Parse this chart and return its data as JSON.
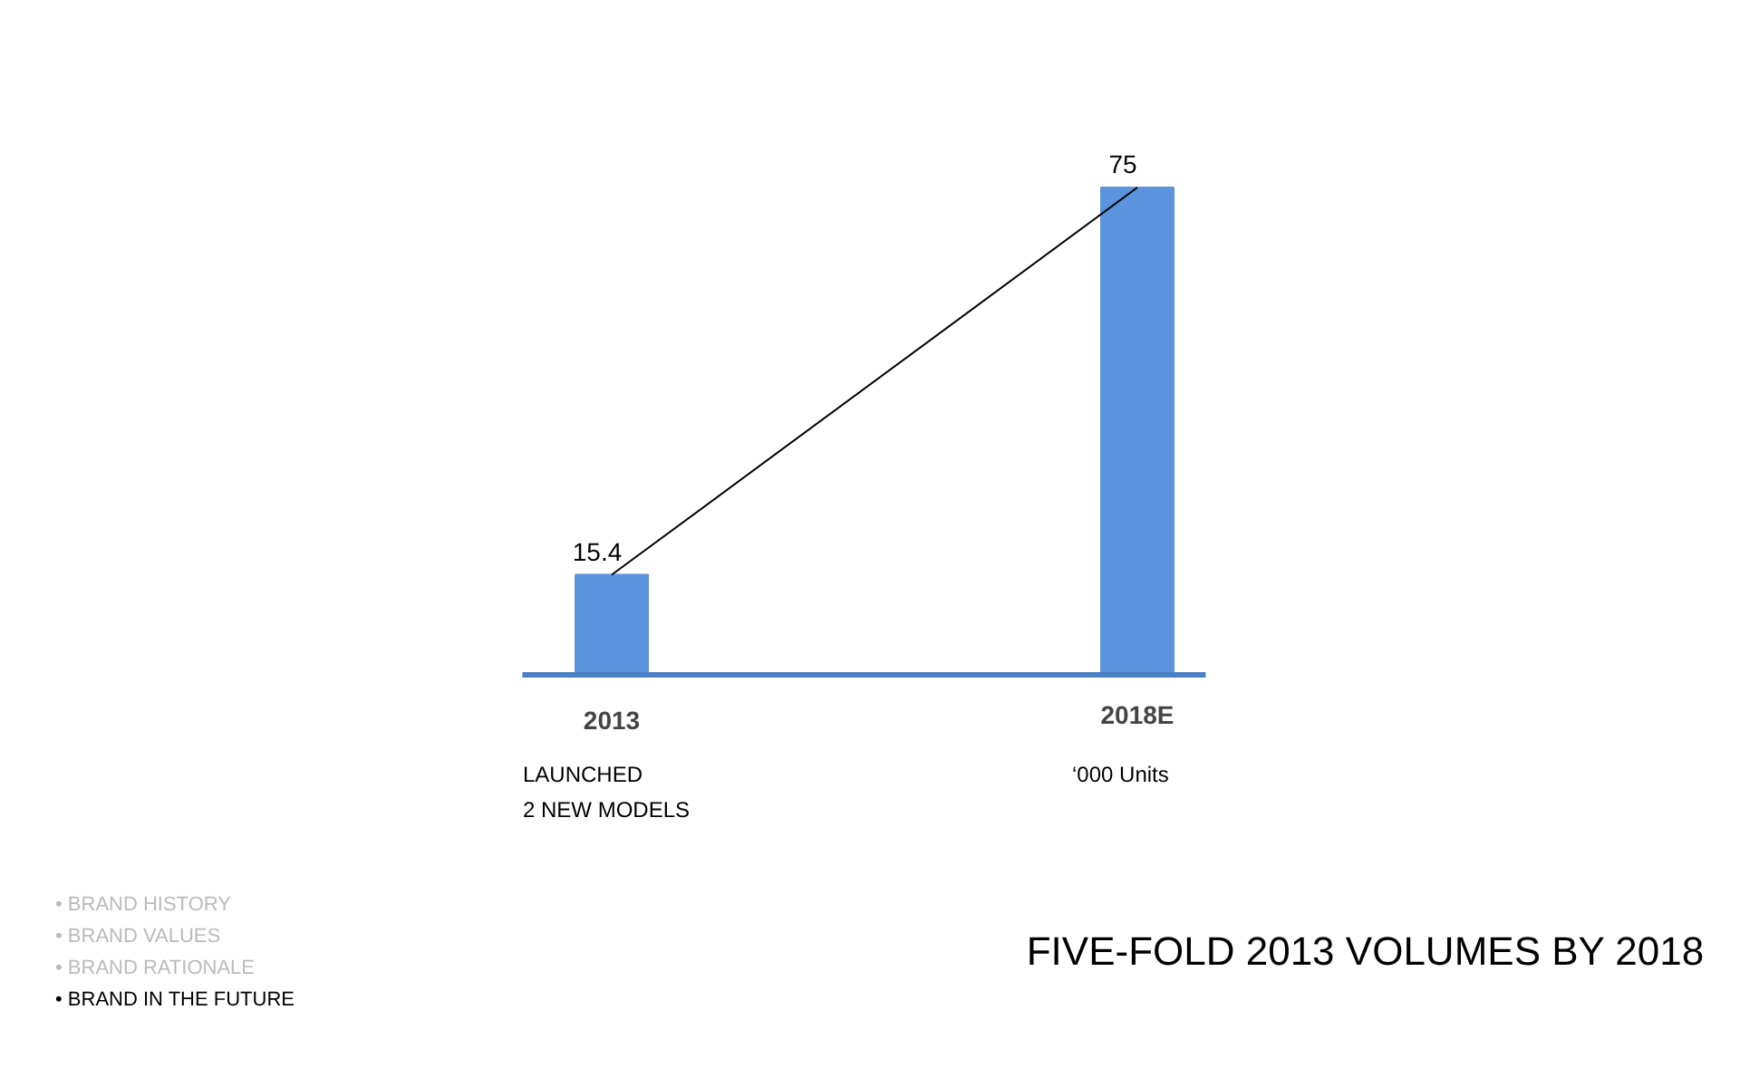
{
  "chart_data": {
    "type": "bar",
    "title": "FIVE-FOLD 2013 VOLUMES BY 2018",
    "categories": [
      "2013",
      "2018E"
    ],
    "series": [
      {
        "color": "#5b93dc",
        "values": [
          15.4,
          75
        ],
        "value_labels": [
          "15.4",
          "75"
        ]
      },
      {
        "type": "line",
        "color": "#000000",
        "values": [
          15.4,
          75
        ]
      }
    ],
    "grid": false,
    "annotations": [
      "LAUNCHED\n2 NEW MODELS",
      "‘000 Units",
      "•  BRAND HISTORY",
      "•  BRAND VALUES",
      "•  BRAND RATIONALE",
      "•  BRAND IN THE FUTURE"
    ]
  }
}
